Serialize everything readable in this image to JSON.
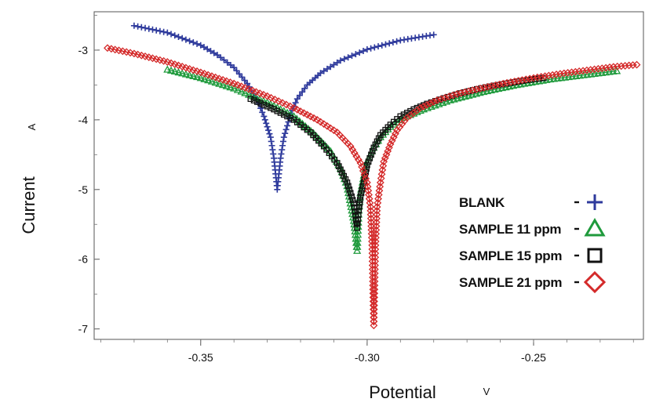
{
  "chart_data": {
    "type": "line",
    "xlabel": "Potential",
    "x_unit": "V",
    "ylabel": "Current",
    "y_unit": "A",
    "y_scale": "log10",
    "xlim": [
      -0.382,
      -0.217
    ],
    "ylim": [
      -7.15,
      -2.45
    ],
    "x_ticks": [
      -0.35,
      -0.3,
      -0.25
    ],
    "x_tick_labels": [
      "-0.35",
      "-0.30",
      "-0.25"
    ],
    "y_ticks": [
      -3,
      -4,
      -5,
      -6,
      -7
    ],
    "y_tick_labels": [
      "-3",
      "-4",
      "-5",
      "-6",
      "-7"
    ],
    "grid": false,
    "legend_position": "right",
    "series": [
      {
        "name": "BLANK",
        "color": "#2e3a9c",
        "marker": "plus",
        "corrosion_potential": -0.327,
        "min_log_current": -5.0,
        "x": [
          -0.37,
          -0.36,
          -0.35,
          -0.345,
          -0.34,
          -0.336,
          -0.333,
          -0.331,
          -0.329,
          -0.328,
          -0.327,
          -0.326,
          -0.325,
          -0.323,
          -0.321,
          -0.318,
          -0.314,
          -0.308,
          -0.3,
          -0.29,
          -0.28
        ],
        "y": [
          -2.65,
          -2.75,
          -2.93,
          -3.07,
          -3.25,
          -3.48,
          -3.72,
          -3.95,
          -4.25,
          -4.55,
          -5.0,
          -4.55,
          -4.25,
          -3.92,
          -3.7,
          -3.5,
          -3.33,
          -3.15,
          -2.99,
          -2.86,
          -2.78
        ]
      },
      {
        "name": "SAMPLE 11 ppm",
        "color": "#1f9a3c",
        "marker": "triangle",
        "corrosion_potential": -0.303,
        "min_log_current": -5.88,
        "x": [
          -0.36,
          -0.35,
          -0.34,
          -0.33,
          -0.322,
          -0.316,
          -0.311,
          -0.308,
          -0.306,
          -0.305,
          -0.304,
          -0.3035,
          -0.303,
          -0.3025,
          -0.302,
          -0.301,
          -0.3,
          -0.298,
          -0.296,
          -0.293,
          -0.289,
          -0.283,
          -0.275,
          -0.265,
          -0.255,
          -0.245,
          -0.235,
          -0.225
        ],
        "y": [
          -3.28,
          -3.4,
          -3.55,
          -3.75,
          -3.95,
          -4.2,
          -4.45,
          -4.7,
          -4.95,
          -5.2,
          -5.45,
          -5.65,
          -5.88,
          -5.3,
          -5.05,
          -4.8,
          -4.6,
          -4.4,
          -4.25,
          -4.1,
          -3.97,
          -3.85,
          -3.72,
          -3.6,
          -3.5,
          -3.42,
          -3.36,
          -3.3
        ]
      },
      {
        "name": "SAMPLE 15 ppm",
        "color": "#111111",
        "marker": "square",
        "corrosion_potential": -0.303,
        "min_log_current": -5.55,
        "x": [
          -0.335,
          -0.328,
          -0.322,
          -0.317,
          -0.313,
          -0.309,
          -0.306,
          -0.304,
          -0.303,
          -0.3025,
          -0.302,
          -0.301,
          -0.3,
          -0.298,
          -0.296,
          -0.293,
          -0.29,
          -0.286,
          -0.282,
          -0.277,
          -0.272,
          -0.267,
          -0.262,
          -0.257,
          -0.252,
          -0.247
        ],
        "y": [
          -3.7,
          -3.85,
          -4.0,
          -4.18,
          -4.38,
          -4.62,
          -4.9,
          -5.2,
          -5.55,
          -5.3,
          -5.1,
          -4.9,
          -4.65,
          -4.4,
          -4.22,
          -4.07,
          -3.95,
          -3.85,
          -3.77,
          -3.69,
          -3.62,
          -3.56,
          -3.51,
          -3.47,
          -3.43,
          -3.4
        ]
      },
      {
        "name": "SAMPLE 21 ppm",
        "color": "#d42a2a",
        "marker": "diamond",
        "corrosion_potential": -0.298,
        "min_log_current": -6.95,
        "x": [
          -0.378,
          -0.37,
          -0.36,
          -0.35,
          -0.34,
          -0.33,
          -0.322,
          -0.315,
          -0.309,
          -0.305,
          -0.302,
          -0.3,
          -0.299,
          -0.2985,
          -0.298,
          -0.2975,
          -0.297,
          -0.296,
          -0.295,
          -0.293,
          -0.291,
          -0.288,
          -0.284,
          -0.279,
          -0.273,
          -0.266,
          -0.258,
          -0.25,
          -0.242,
          -0.234,
          -0.226,
          -0.219
        ],
        "y": [
          -2.97,
          -3.05,
          -3.17,
          -3.32,
          -3.48,
          -3.66,
          -3.83,
          -4.0,
          -4.18,
          -4.38,
          -4.62,
          -4.9,
          -5.25,
          -5.8,
          -6.95,
          -5.8,
          -5.25,
          -4.9,
          -4.6,
          -4.35,
          -4.15,
          -3.97,
          -3.83,
          -3.72,
          -3.63,
          -3.55,
          -3.47,
          -3.4,
          -3.34,
          -3.29,
          -3.24,
          -3.21
        ]
      }
    ]
  }
}
